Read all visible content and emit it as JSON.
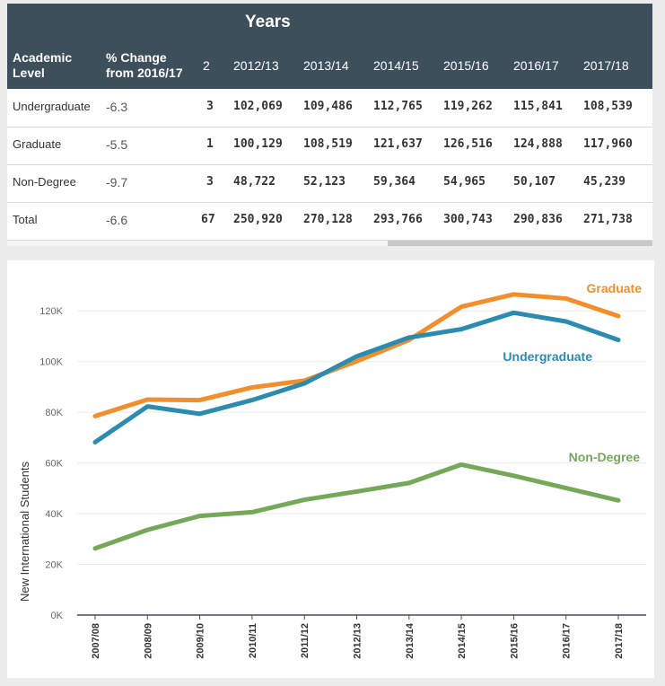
{
  "table": {
    "title": "Years",
    "headers": {
      "academic_level": [
        "Academic",
        "Level"
      ],
      "pct_change": [
        "% Change",
        "from 2016/17"
      ],
      "extra": "2",
      "years": [
        "2012/13",
        "2013/14",
        "2014/15",
        "2015/16",
        "2016/17",
        "2017/18"
      ]
    },
    "rows": [
      {
        "label": "Undergraduate",
        "pct": "-6.3",
        "extra": "3",
        "values": [
          "102,069",
          "109,486",
          "112,765",
          "119,262",
          "115,841",
          "108,539"
        ]
      },
      {
        "label": "Graduate",
        "pct": "-5.5",
        "extra": "1",
        "values": [
          "100,129",
          "108,519",
          "121,637",
          "126,516",
          "124,888",
          "117,960"
        ]
      },
      {
        "label": "Non-Degree",
        "pct": "-9.7",
        "extra": "3",
        "values": [
          "48,722",
          "52,123",
          "59,364",
          "54,965",
          "50,107",
          "45,239"
        ]
      },
      {
        "label": "Total",
        "pct": "-6.6",
        "extra": "67",
        "values": [
          "250,920",
          "270,128",
          "293,766",
          "300,743",
          "290,836",
          "271,738"
        ]
      }
    ]
  },
  "chart_data": {
    "type": "line",
    "title": "",
    "xlabel": "",
    "ylabel": "New International Students",
    "ylim": [
      0,
      130000
    ],
    "yticks": [
      0,
      20000,
      40000,
      60000,
      80000,
      100000,
      120000
    ],
    "ytick_labels": [
      "0K",
      "20K",
      "40K",
      "60K",
      "80K",
      "100K",
      "120K"
    ],
    "categories": [
      "2007/08",
      "2008/09",
      "2009/10",
      "2010/11",
      "2011/12",
      "2012/13",
      "2013/14",
      "2014/15",
      "2015/16",
      "2016/17",
      "2017/18"
    ],
    "series": [
      {
        "name": "Graduate",
        "color": "#f28e2b",
        "values": [
          78500,
          85000,
          84800,
          89800,
          92500,
          100129,
          108519,
          121637,
          126516,
          124888,
          117960
        ]
      },
      {
        "name": "Undergraduate",
        "color": "#2b8cb0",
        "values": [
          68200,
          82300,
          79400,
          84800,
          91400,
          102069,
          109486,
          112765,
          119262,
          115841,
          108539
        ]
      },
      {
        "name": "Non-Degree",
        "color": "#76a85a",
        "values": [
          26300,
          33600,
          39100,
          40600,
          45500,
          48722,
          52123,
          59364,
          54965,
          50107,
          45239
        ]
      }
    ],
    "legend": "inline labels at right"
  }
}
